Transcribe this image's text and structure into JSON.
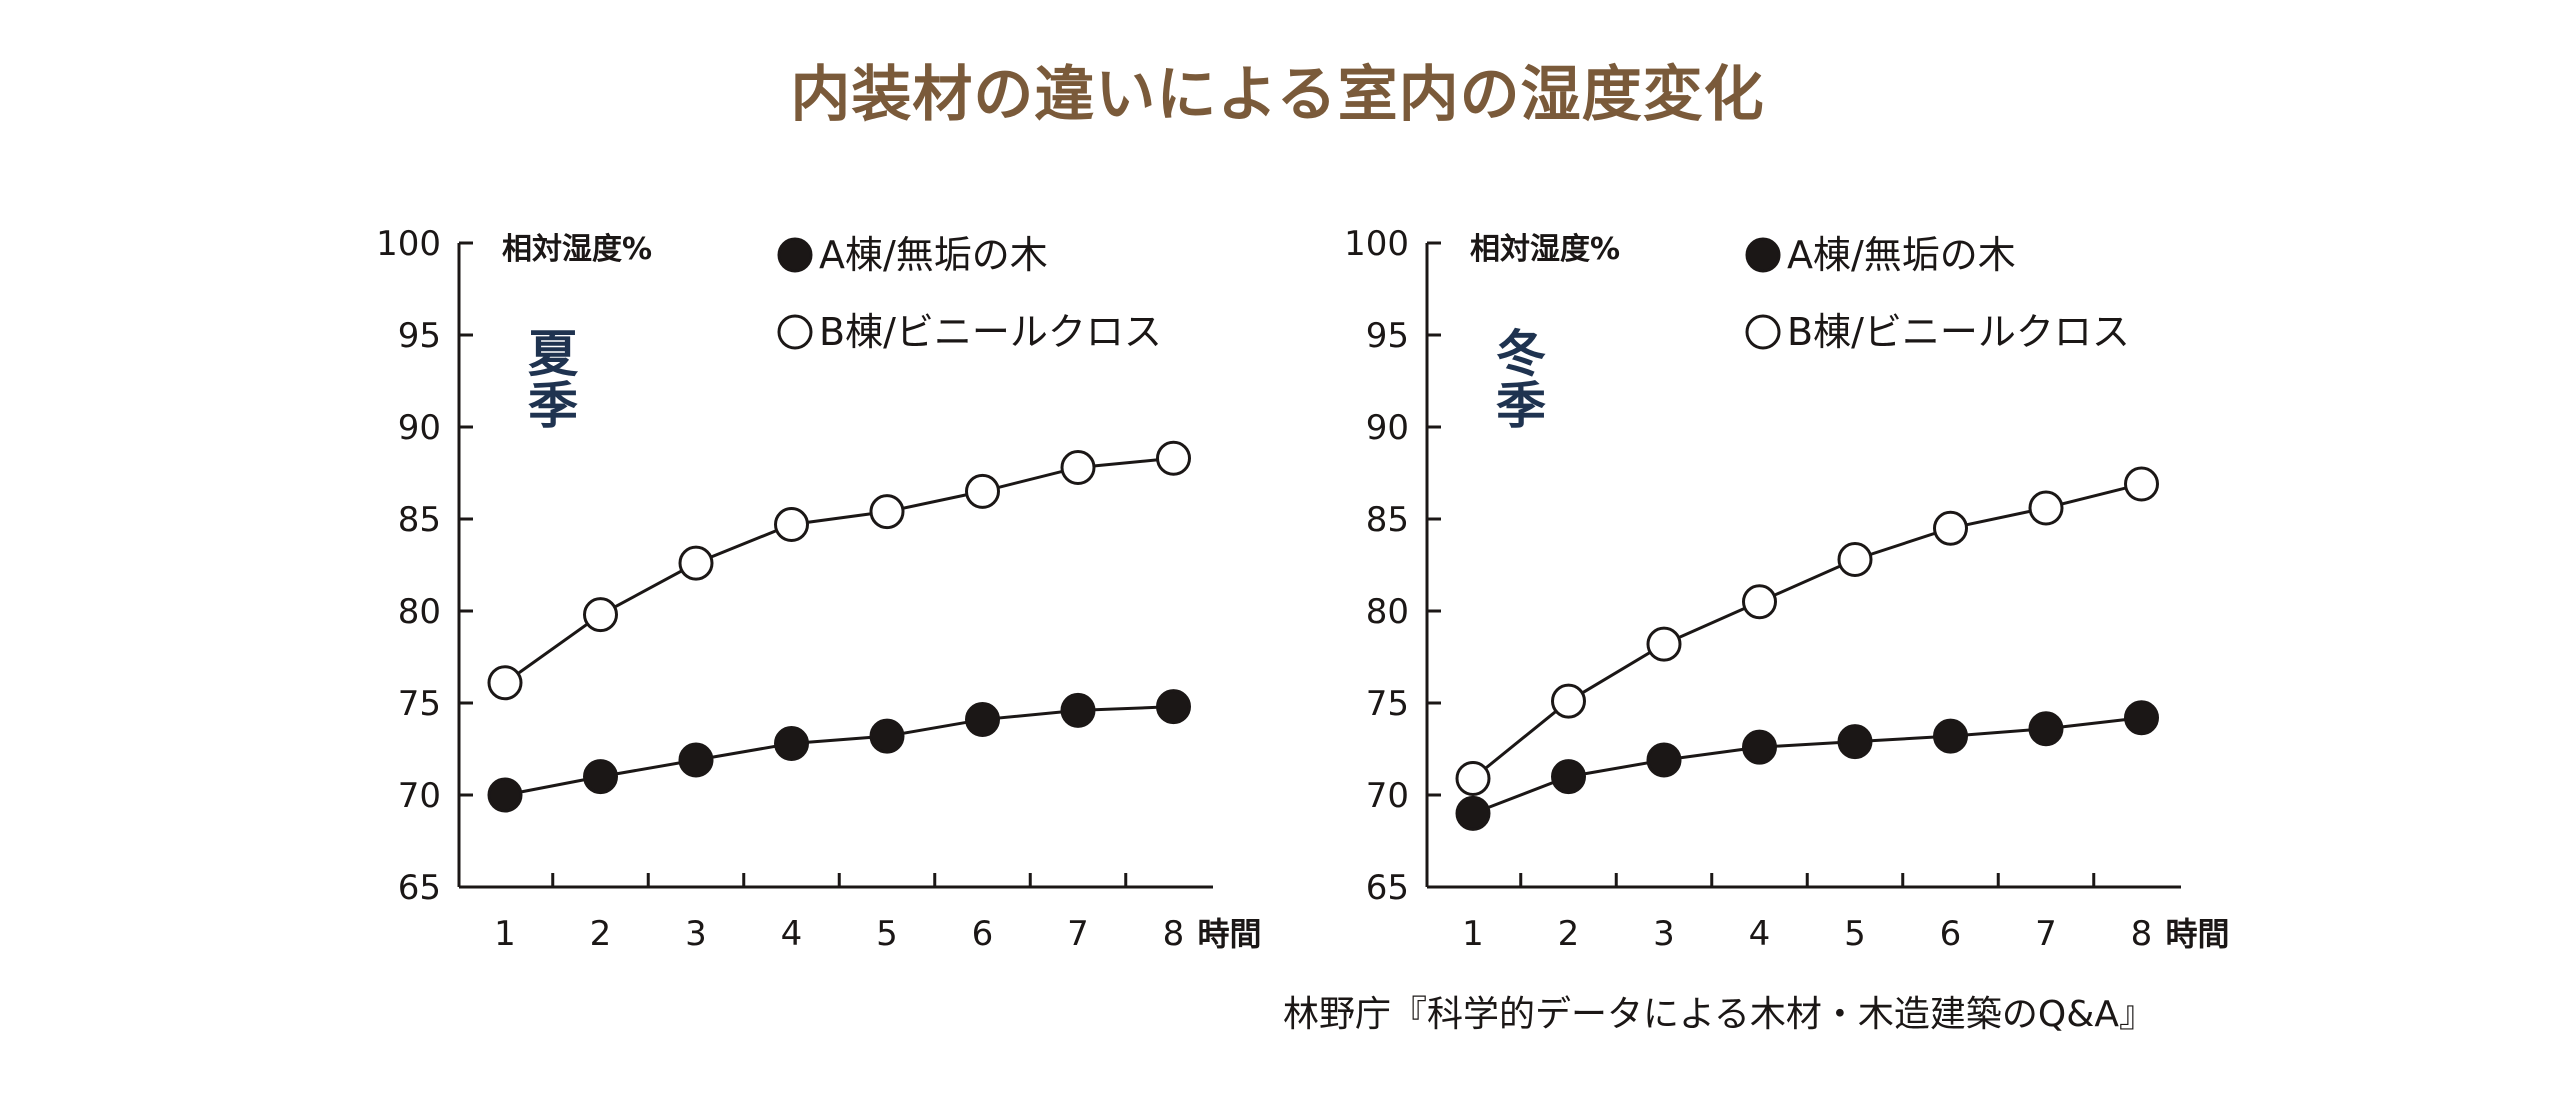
{
  "title": "内装材の違いによる室内の湿度変化",
  "source": "林野庁『科学的データによる木材・木造建築のQ&A』",
  "colors": {
    "title": "#7a5a3a",
    "season_label": "#1f3350",
    "line": "#1b1716",
    "filled_marker": "#1b1716",
    "open_marker_fill": "#ffffff"
  },
  "chart_data": [
    {
      "type": "line",
      "panel": "summer",
      "season_label": "夏季",
      "ylabel": "相対湿度%",
      "xlabel": "時間",
      "x": [
        1,
        2,
        3,
        4,
        5,
        6,
        7,
        8
      ],
      "x_tick_labels": [
        "1",
        "2",
        "3",
        "4",
        "5",
        "6",
        "7",
        "8"
      ],
      "y_ticks": [
        65,
        70,
        75,
        80,
        85,
        90,
        95,
        100
      ],
      "ylim": [
        65,
        100
      ],
      "xlim": [
        0.5,
        8.5
      ],
      "grid": false,
      "legend_position": "top-right",
      "series": [
        {
          "name": "A棟/無垢の木",
          "marker": "filled-circle",
          "values": [
            70.0,
            71.0,
            71.9,
            72.8,
            73.2,
            74.1,
            74.6,
            74.8
          ]
        },
        {
          "name": "B棟/ビニールクロス",
          "marker": "open-circle",
          "values": [
            76.1,
            79.8,
            82.6,
            84.7,
            85.4,
            86.5,
            87.8,
            88.3
          ]
        }
      ]
    },
    {
      "type": "line",
      "panel": "winter",
      "season_label": "冬季",
      "ylabel": "相対湿度%",
      "xlabel": "時間",
      "x": [
        1,
        2,
        3,
        4,
        5,
        6,
        7,
        8
      ],
      "x_tick_labels": [
        "1",
        "2",
        "3",
        "4",
        "5",
        "6",
        "7",
        "8"
      ],
      "y_ticks": [
        65,
        70,
        75,
        80,
        85,
        90,
        95,
        100
      ],
      "ylim": [
        65,
        100
      ],
      "xlim": [
        0.5,
        8.5
      ],
      "grid": false,
      "legend_position": "top-right",
      "series": [
        {
          "name": "A棟/無垢の木",
          "marker": "filled-circle",
          "values": [
            69.0,
            71.0,
            71.9,
            72.6,
            72.9,
            73.2,
            73.6,
            74.2
          ]
        },
        {
          "name": "B棟/ビニールクロス",
          "marker": "open-circle",
          "values": [
            70.9,
            75.1,
            78.2,
            80.5,
            82.8,
            84.5,
            85.6,
            86.9
          ]
        }
      ]
    }
  ]
}
